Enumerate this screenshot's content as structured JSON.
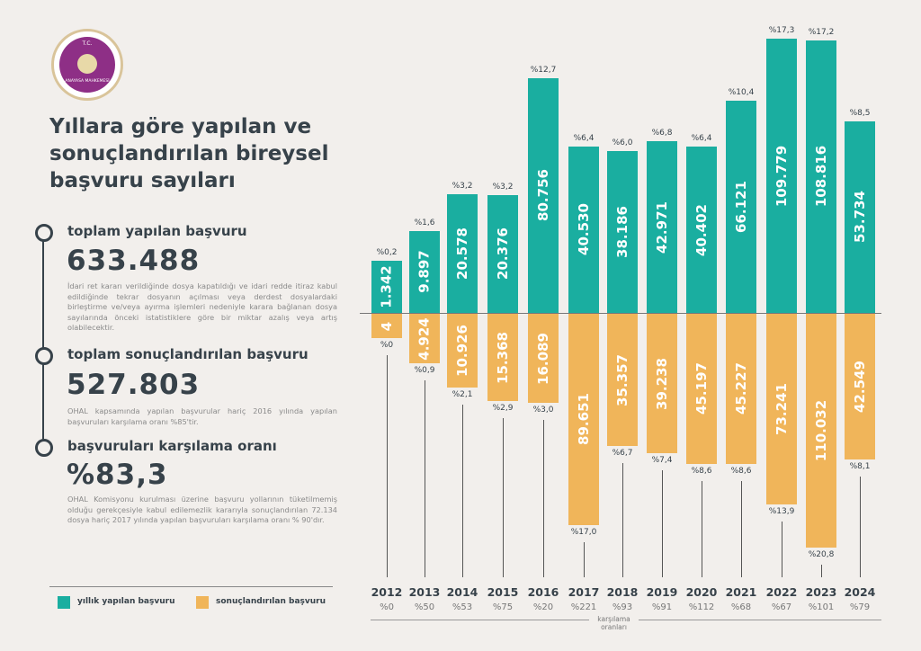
{
  "logo": {
    "top_text": "T.C.",
    "bottom_text": "ANAYASA MAHKEMESİ"
  },
  "title": "Yıllara göre yapılan ve sonuçlandırılan bireysel başvuru sayıları",
  "stats": [
    {
      "heading": "toplam yapılan başvuru",
      "value": "633.488",
      "note": "İdari ret kararı verildiğinde dosya kapatıldığı ve idari redde itiraz kabul edildiğinde tekrar dosyanın açılması veya derdest dosyalardaki birleştirme ve/veya ayırma işlemleri nedeniyle karara bağlanan dosya sayılarında önceki istatistiklere göre bir miktar azalış veya artış olabilecektir."
    },
    {
      "heading": "toplam sonuçlandırılan başvuru",
      "value": "527.803",
      "note": "OHAL kapsamında yapılan başvurular hariç 2016 yılında yapılan başvuruları karşılama oranı %85'tir."
    },
    {
      "heading": "başvuruları karşılama oranı",
      "value": "%83,3",
      "note": "OHAL Komisyonu kurulması üzerine başvuru yollarının tüketilmemiş olduğu gerekçesiyle kabul edilemezlik kararıyla sonuçlandırılan 72.134 dosya hariç 2017 yılında yapılan başvuruları karşılama oranı % 90'dır."
    }
  ],
  "legend": {
    "filed": "yıllık yapılan başvuru",
    "resolved": "sonuçlandırılan başvuru"
  },
  "chart_data": {
    "type": "bar",
    "categories": [
      "2012",
      "2013",
      "2014",
      "2015",
      "2016",
      "2017",
      "2018",
      "2019",
      "2020",
      "2021",
      "2022",
      "2023",
      "2024"
    ],
    "series": [
      {
        "name": "yıllık yapılan başvuru",
        "color": "#1aaea0",
        "values": [
          "1.342",
          "9.897",
          "20.578",
          "20.376",
          "80.756",
          "40.530",
          "38.186",
          "42.971",
          "40.402",
          "66.121",
          "109.779",
          "108.816",
          "53.734"
        ],
        "shares": [
          "%0,2",
          "%1,6",
          "%3,2",
          "%3,2",
          "%12,7",
          "%6,4",
          "%6,0",
          "%6,8",
          "%6,4",
          "%10,4",
          "%17,3",
          "%17,2",
          "%8,5"
        ]
      },
      {
        "name": "sonuçlandırılan başvuru",
        "color": "#f0b55a",
        "values": [
          "4",
          "4.924",
          "10.926",
          "15.368",
          "16.089",
          "89.651",
          "35.357",
          "39.238",
          "45.197",
          "45.227",
          "73.241",
          "110.032",
          "42.549"
        ],
        "shares": [
          "%0",
          "%0,9",
          "%2,1",
          "%2,9",
          "%3,0",
          "%17,0",
          "%6,7",
          "%7,4",
          "%8,6",
          "%8,6",
          "%13,9",
          "%20,8",
          "%8,1"
        ]
      }
    ],
    "ratios": [
      "%0",
      "%50",
      "%53",
      "%75",
      "%20",
      "%221",
      "%93",
      "%91",
      "%112",
      "%68",
      "%67",
      "%101",
      "%79"
    ],
    "ratio_label": "karşılama oranları"
  }
}
